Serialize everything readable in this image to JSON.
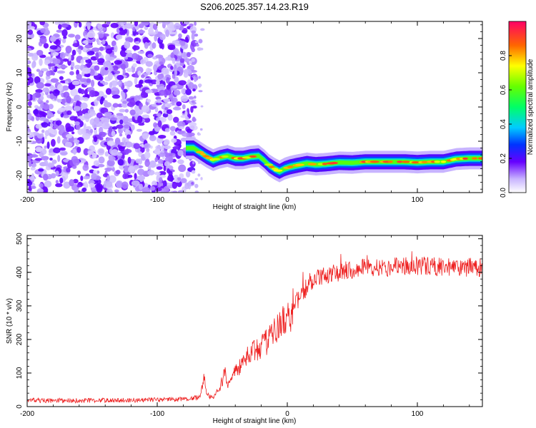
{
  "title": "S206.2025.357.14.23.R19",
  "chart_data": [
    {
      "type": "heatmap",
      "xlabel": "Height of straight line (km)",
      "ylabel": "Frequency (Hz)",
      "xlim": [
        -200,
        150
      ],
      "ylim": [
        -25,
        25
      ],
      "x_ticks": [
        -200,
        -100,
        0,
        100
      ],
      "x_tick_labels": [
        "-200",
        "-100",
        "0",
        "100"
      ],
      "y_ticks": [
        -20,
        -10,
        0,
        10,
        20
      ],
      "y_tick_labels": [
        "-20",
        "-10",
        "0",
        "10",
        "20"
      ],
      "noise_region_x": [
        -200,
        -75
      ],
      "signal_trace": {
        "x": [
          -78,
          -72,
          -68,
          -62,
          -57,
          -52,
          -46,
          -40,
          -34,
          -28,
          -22,
          -18,
          -14,
          -10,
          -6,
          -2,
          2,
          8,
          15,
          22,
          30,
          40,
          50,
          60,
          75,
          90,
          100,
          110,
          120,
          130,
          140,
          150
        ],
        "y": [
          -12,
          -12,
          -13,
          -14.5,
          -15.5,
          -14.8,
          -14.3,
          -15,
          -15,
          -14.5,
          -14.3,
          -15.5,
          -17,
          -18,
          -18.8,
          -18,
          -17.5,
          -17,
          -16.5,
          -16.8,
          -16.6,
          -16.2,
          -16.3,
          -16,
          -16,
          -16,
          -16.2,
          -16,
          -16,
          -15.2,
          -15,
          -15
        ]
      },
      "colorbar": {
        "label": "Normalized spectral amplitude",
        "range": [
          0,
          1
        ],
        "ticks": [
          0.0,
          0.2,
          0.4,
          0.6,
          0.8
        ],
        "tick_labels": [
          "0.0",
          "0.2",
          "0.4",
          "0.6",
          "0.8"
        ]
      }
    },
    {
      "type": "line",
      "xlabel": "Height of straight line (km)",
      "ylabel": "SNR (10 * v/v)",
      "xlim": [
        -200,
        150
      ],
      "ylim": [
        0,
        510
      ],
      "x_ticks": [
        -200,
        -100,
        0,
        100
      ],
      "x_tick_labels": [
        "-200",
        "-100",
        "0",
        "100"
      ],
      "y_ticks": [
        0,
        100,
        200,
        300,
        400,
        500
      ],
      "y_tick_labels": [
        "0",
        "100",
        "200",
        "300",
        "400",
        "500"
      ],
      "series": [
        {
          "name": "SNR",
          "color": "#ee2222",
          "x": [
            -200,
            -150,
            -100,
            -75,
            -67,
            -64,
            -62,
            -60,
            -57,
            -52,
            -48,
            -45,
            -40,
            -35,
            -30,
            -25,
            -20,
            -15,
            -10,
            -5,
            0,
            5,
            10,
            15,
            20,
            25,
            30,
            40,
            50,
            60,
            80,
            100,
            120,
            150
          ],
          "y": [
            18,
            18,
            20,
            22,
            30,
            85,
            40,
            30,
            25,
            55,
            100,
            60,
            110,
            125,
            150,
            165,
            185,
            200,
            220,
            240,
            265,
            300,
            330,
            355,
            380,
            385,
            390,
            400,
            410,
            415,
            415,
            420,
            415,
            415
          ]
        }
      ]
    }
  ]
}
